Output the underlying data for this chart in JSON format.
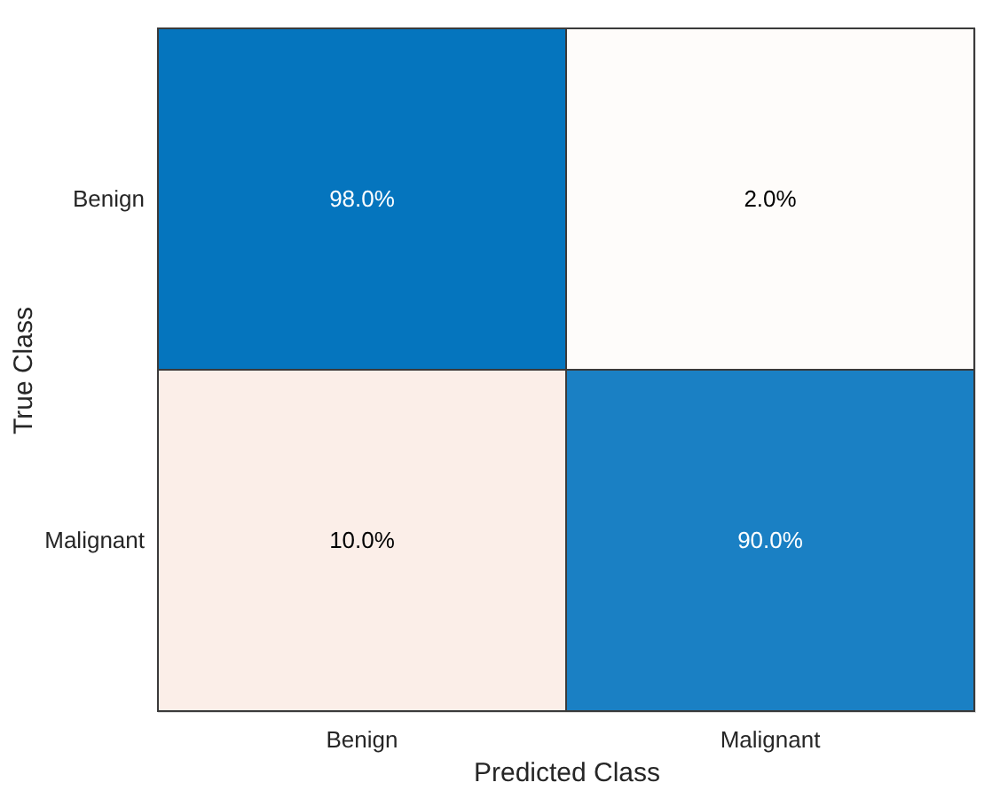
{
  "chart_data": {
    "type": "heatmap",
    "xlabel": "Predicted Class",
    "ylabel": "True Class",
    "categories": [
      "Benign",
      "Malignant"
    ],
    "y_categories": [
      "Benign",
      "Malignant"
    ],
    "cells": [
      [
        98.0,
        2.0
      ],
      [
        10.0,
        90.0
      ]
    ],
    "cell_labels": [
      [
        "98.0%",
        "2.0%"
      ],
      [
        "10.0%",
        "90.0%"
      ]
    ]
  }
}
